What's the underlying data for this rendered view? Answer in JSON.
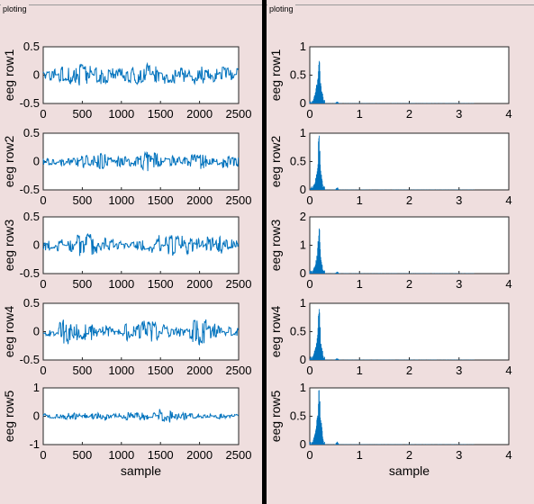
{
  "window": {
    "left_panel_title": "ploting",
    "right_panel_title": "ploting"
  },
  "colors": {
    "background": "#efdede",
    "separator": "#000000",
    "line": "#0072bd",
    "axes": "#262626"
  },
  "chart_data": [
    {
      "type": "line",
      "ylabel": "eeg row1",
      "xlabel": "",
      "xlim": [
        0,
        2500
      ],
      "ylim": [
        -0.5,
        0.5
      ],
      "xticks": [
        "0",
        "500",
        "1000",
        "1500",
        "2000",
        "2500"
      ],
      "yticks": [
        "-0.5",
        "0",
        "0.5"
      ],
      "signal": {
        "n_samples": 2500,
        "amplitude": 0.22,
        "envelope": [
          0.55,
          0.7,
          0.9,
          0.75,
          0.6,
          0.8,
          1.0,
          0.85,
          0.7,
          0.9,
          0.6,
          0.75
        ]
      }
    },
    {
      "type": "line",
      "ylabel": "eeg row2",
      "xlabel": "",
      "xlim": [
        0,
        2500
      ],
      "ylim": [
        -0.5,
        0.5
      ],
      "xticks": [
        "0",
        "500",
        "1000",
        "1500",
        "2000",
        "2500"
      ],
      "yticks": [
        "-0.5",
        "0",
        "0.5"
      ],
      "signal": {
        "n_samples": 2500,
        "amplitude": 0.2,
        "envelope": [
          0.3,
          0.45,
          0.6,
          0.8,
          0.5,
          0.7,
          1.0,
          0.55,
          0.45,
          0.9,
          0.4,
          0.8
        ]
      }
    },
    {
      "type": "line",
      "ylabel": "eeg row3",
      "xlabel": "",
      "xlim": [
        0,
        2500
      ],
      "ylim": [
        -0.5,
        0.5
      ],
      "xticks": [
        "0",
        "500",
        "1000",
        "1500",
        "2000",
        "2500"
      ],
      "yticks": [
        "-0.5",
        "0",
        "0.5"
      ],
      "signal": {
        "n_samples": 2500,
        "amplitude": 0.24,
        "envelope": [
          0.45,
          0.6,
          1.0,
          0.7,
          0.55,
          0.35,
          0.6,
          0.95,
          0.8,
          0.6,
          0.7,
          0.55
        ]
      }
    },
    {
      "type": "line",
      "ylabel": "eeg row4",
      "xlabel": "",
      "xlim": [
        0,
        2500
      ],
      "ylim": [
        -0.5,
        0.5
      ],
      "xticks": [
        "0",
        "500",
        "1000",
        "1500",
        "2000",
        "2500"
      ],
      "yticks": [
        "-0.5",
        "0",
        "0.5"
      ],
      "signal": {
        "n_samples": 2500,
        "amplitude": 0.3,
        "envelope": [
          0.3,
          0.8,
          0.55,
          0.35,
          0.3,
          0.6,
          0.75,
          0.5,
          0.35,
          1.0,
          0.55,
          0.4
        ]
      }
    },
    {
      "type": "line",
      "ylabel": "eeg row5",
      "xlabel": "sample",
      "xlim": [
        0,
        2500
      ],
      "ylim": [
        -1,
        1
      ],
      "xticks": [
        "0",
        "500",
        "1000",
        "1500",
        "2000",
        "2500"
      ],
      "yticks": [
        "-1",
        "0",
        "1"
      ],
      "signal": {
        "n_samples": 2500,
        "amplitude": 0.28,
        "envelope": [
          0.35,
          0.45,
          0.4,
          0.55,
          0.4,
          0.5,
          0.6,
          0.95,
          0.5,
          0.45,
          0.4,
          0.35
        ]
      }
    },
    {
      "type": "line",
      "ylabel": "eeg row1",
      "xlabel": "",
      "xlim": [
        0,
        4
      ],
      "ylim": [
        0,
        1
      ],
      "xticks": [
        "0",
        "1",
        "2",
        "3",
        "4"
      ],
      "yticks": [
        "0",
        "0.5",
        "1"
      ],
      "spectrum": {
        "f_max": 3.3,
        "peaks": [
          {
            "f": 0.1,
            "a": 0.12
          },
          {
            "f": 0.14,
            "a": 0.3
          },
          {
            "f": 0.18,
            "a": 0.58
          },
          {
            "f": 0.2,
            "a": 0.4
          },
          {
            "f": 0.24,
            "a": 0.25
          },
          {
            "f": 0.55,
            "a": 0.04
          }
        ]
      }
    },
    {
      "type": "line",
      "ylabel": "eeg row2",
      "xlabel": "",
      "xlim": [
        0,
        4
      ],
      "ylim": [
        0,
        1
      ],
      "xticks": [
        "0",
        "1",
        "2",
        "3",
        "4"
      ],
      "yticks": [
        "0",
        "0.5",
        "1"
      ],
      "spectrum": {
        "f_max": 3.3,
        "peaks": [
          {
            "f": 0.1,
            "a": 0.1
          },
          {
            "f": 0.14,
            "a": 0.25
          },
          {
            "f": 0.18,
            "a": 0.7
          },
          {
            "f": 0.2,
            "a": 0.5
          },
          {
            "f": 0.24,
            "a": 0.2
          },
          {
            "f": 0.55,
            "a": 0.05
          }
        ]
      }
    },
    {
      "type": "line",
      "ylabel": "eeg row3",
      "xlabel": "",
      "xlim": [
        0,
        4
      ],
      "ylim": [
        0,
        2
      ],
      "xticks": [
        "0",
        "1",
        "2",
        "3",
        "4"
      ],
      "yticks": [
        "0",
        "1",
        "2"
      ],
      "spectrum": {
        "f_max": 3.3,
        "peaks": [
          {
            "f": 0.1,
            "a": 0.2
          },
          {
            "f": 0.14,
            "a": 0.5
          },
          {
            "f": 0.18,
            "a": 1.3
          },
          {
            "f": 0.2,
            "a": 0.8
          },
          {
            "f": 0.24,
            "a": 0.3
          },
          {
            "f": 0.55,
            "a": 0.08
          }
        ]
      }
    },
    {
      "type": "line",
      "ylabel": "eeg row4",
      "xlabel": "",
      "xlim": [
        0,
        4
      ],
      "ylim": [
        0,
        1
      ],
      "xticks": [
        "0",
        "1",
        "2",
        "3",
        "4"
      ],
      "yticks": [
        "0",
        "0.5",
        "1"
      ],
      "spectrum": {
        "f_max": 3.3,
        "peaks": [
          {
            "f": 0.1,
            "a": 0.12
          },
          {
            "f": 0.14,
            "a": 0.3
          },
          {
            "f": 0.18,
            "a": 0.68
          },
          {
            "f": 0.2,
            "a": 0.45
          },
          {
            "f": 0.24,
            "a": 0.2
          },
          {
            "f": 0.55,
            "a": 0.04
          }
        ]
      }
    },
    {
      "type": "line",
      "ylabel": "eeg row5",
      "xlabel": "sample",
      "xlim": [
        0,
        4
      ],
      "ylim": [
        0,
        1
      ],
      "xticks": [
        "0",
        "1",
        "2",
        "3",
        "4"
      ],
      "yticks": [
        "0",
        "0.5",
        "1"
      ],
      "spectrum": {
        "f_max": 3.3,
        "peaks": [
          {
            "f": 0.1,
            "a": 0.15
          },
          {
            "f": 0.14,
            "a": 0.35
          },
          {
            "f": 0.18,
            "a": 0.75
          },
          {
            "f": 0.2,
            "a": 0.55
          },
          {
            "f": 0.24,
            "a": 0.3
          },
          {
            "f": 0.55,
            "a": 0.06
          }
        ]
      }
    }
  ]
}
